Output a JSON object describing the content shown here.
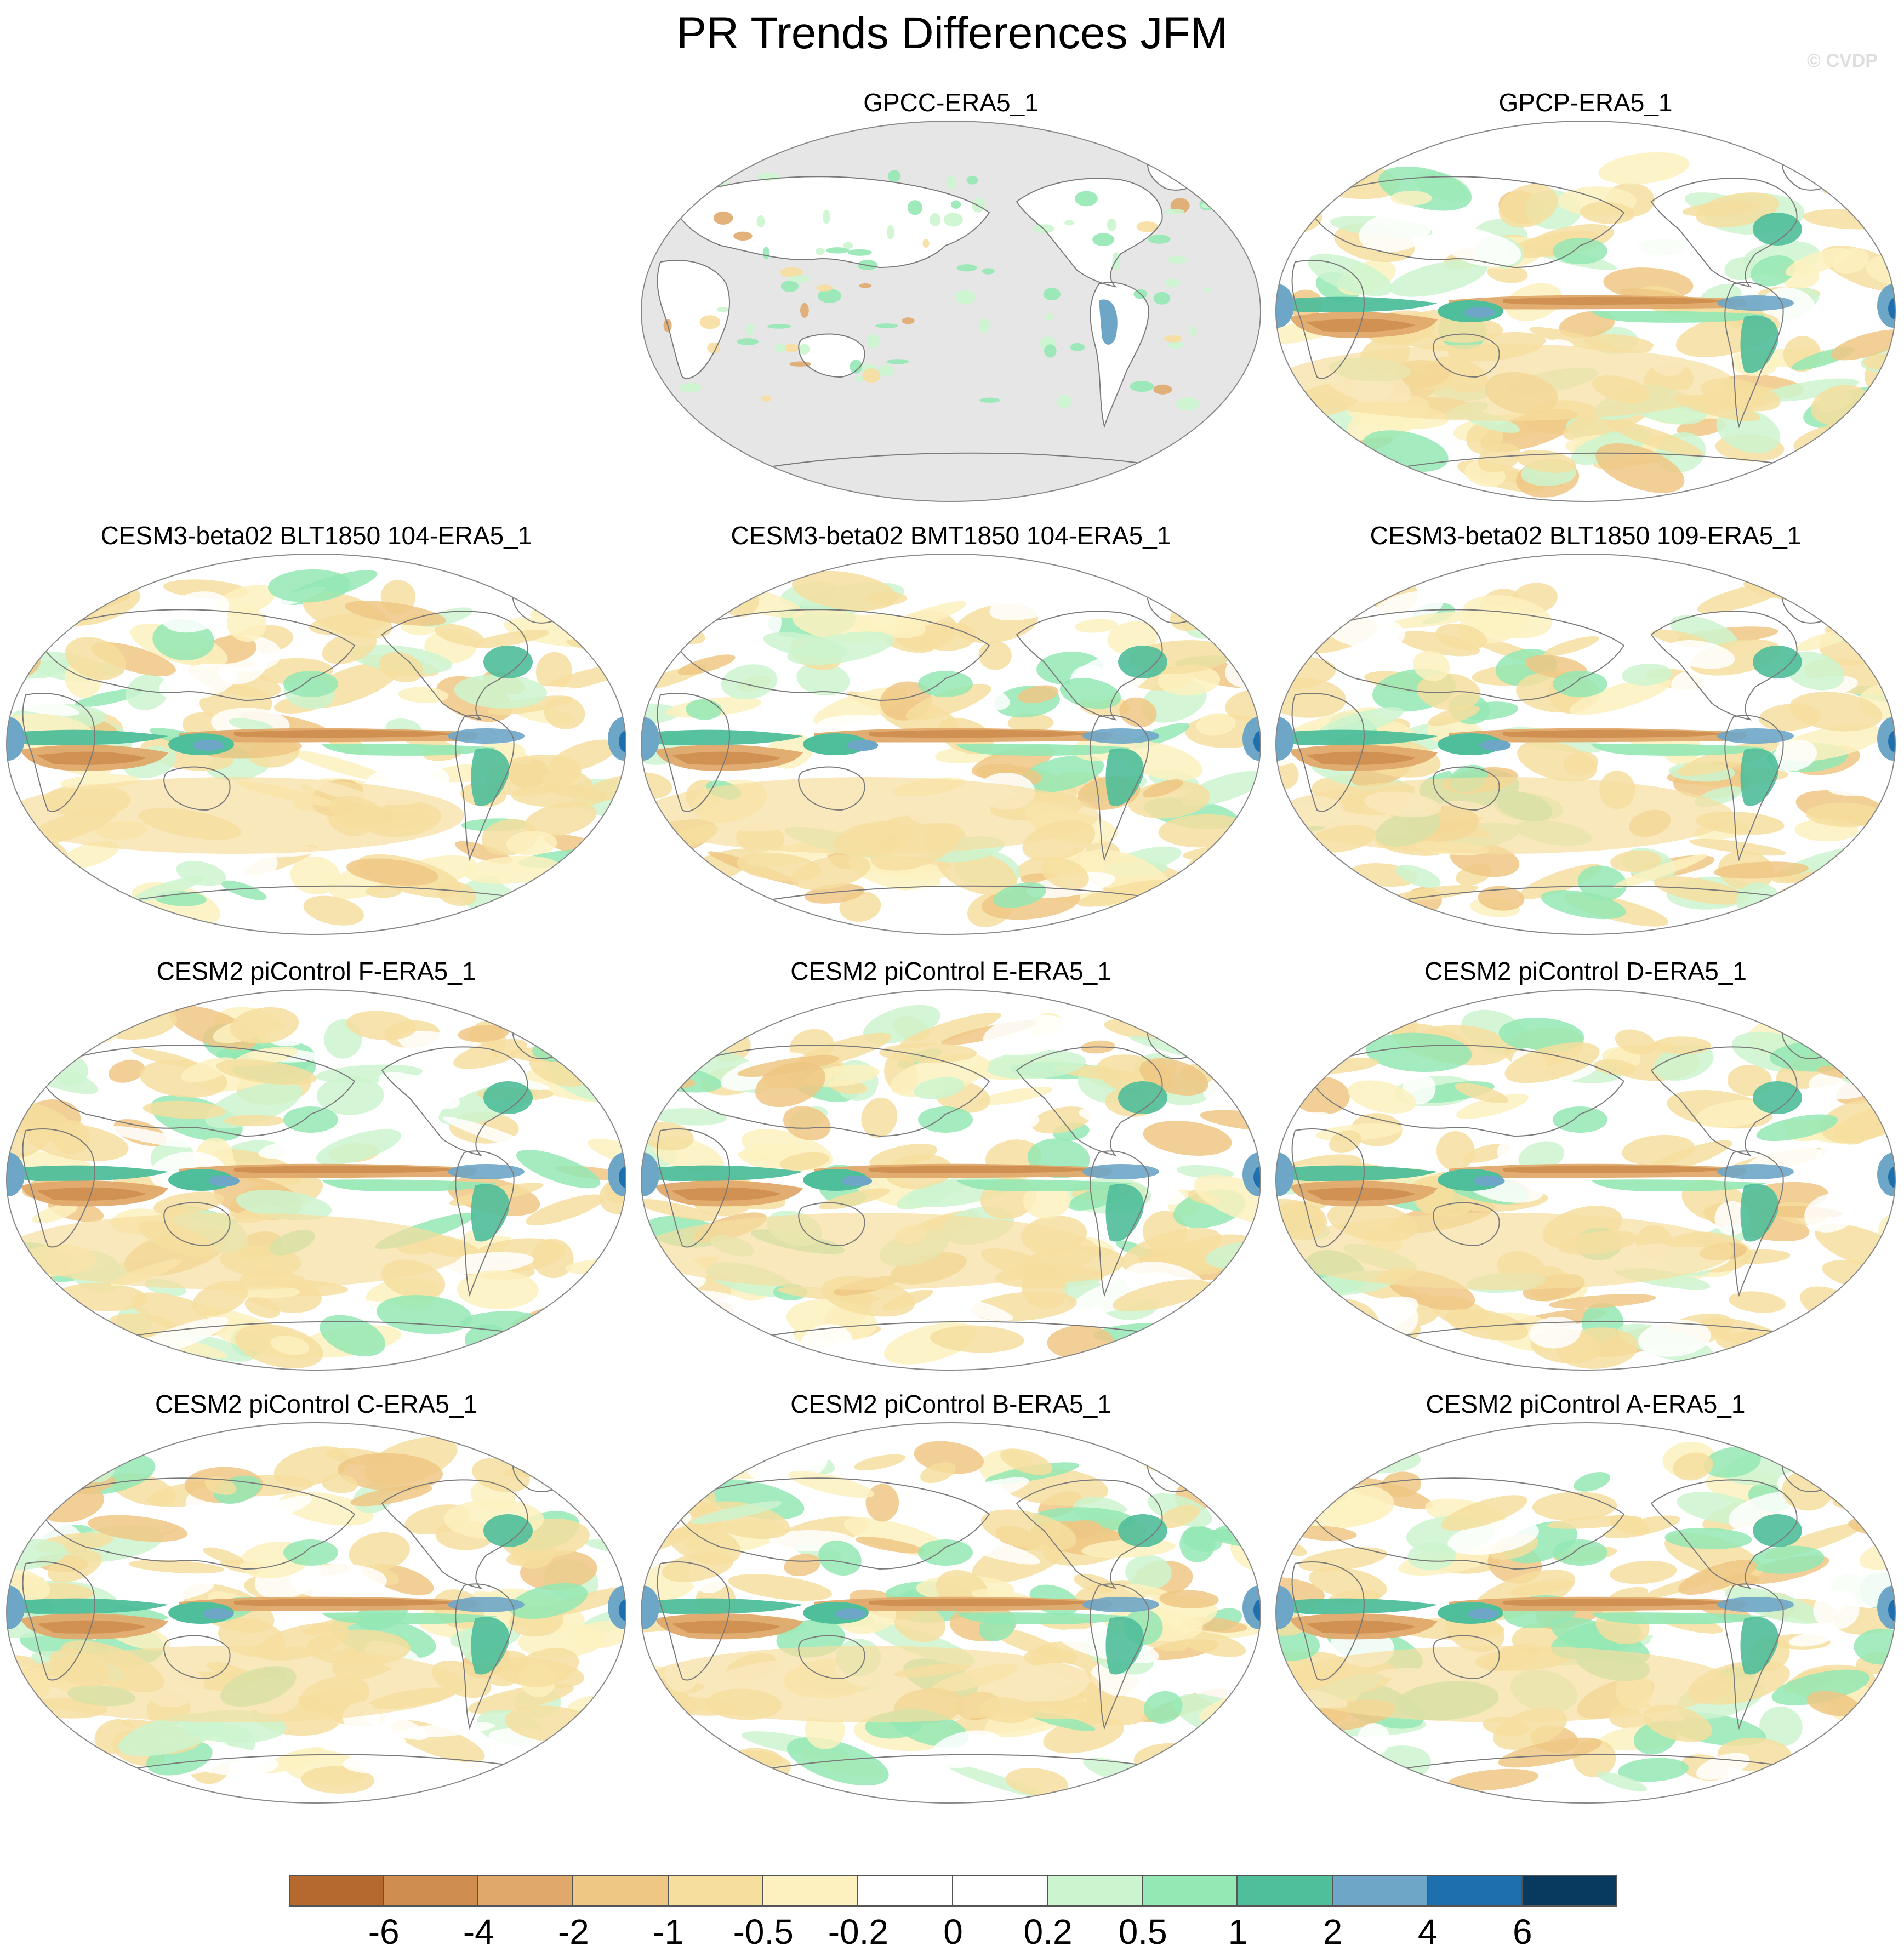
{
  "title": "PR Trends Differences JFM",
  "credit": "© CVDP",
  "panels": [
    {
      "label": "GPCC-ERA5_1",
      "style": "land-only"
    },
    {
      "label": "GPCP-ERA5_1",
      "style": "global"
    },
    {
      "label": "CESM3-beta02 BLT1850 104-ERA5_1",
      "style": "global"
    },
    {
      "label": "CESM3-beta02 BMT1850 104-ERA5_1",
      "style": "global"
    },
    {
      "label": "CESM3-beta02 BLT1850 109-ERA5_1",
      "style": "global"
    },
    {
      "label": "CESM2 piControl F-ERA5_1",
      "style": "global"
    },
    {
      "label": "CESM2 piControl E-ERA5_1",
      "style": "global"
    },
    {
      "label": "CESM2 piControl D-ERA5_1",
      "style": "global"
    },
    {
      "label": "CESM2 piControl C-ERA5_1",
      "style": "global"
    },
    {
      "label": "CESM2 piControl B-ERA5_1",
      "style": "global"
    },
    {
      "label": "CESM2 piControl A-ERA5_1",
      "style": "global"
    }
  ],
  "colorbar": {
    "colors": [
      "#b5692e",
      "#cf8e4f",
      "#e0a96b",
      "#efc784",
      "#f6de9f",
      "#fdf1bf",
      "#ffffff",
      "#ffffff",
      "#ccf5cf",
      "#94e8b4",
      "#4fbe9a",
      "#6ea6c8",
      "#1e6fae",
      "#08395e"
    ],
    "labels": [
      "-6",
      "-4",
      "-2",
      "-1",
      "-0.5",
      "-0.2",
      "0",
      "0.2",
      "0.5",
      "1",
      "2",
      "4",
      "6"
    ]
  },
  "colors": {
    "missing": "#e6e6e6",
    "coast": "#7a7a7a",
    "border": "#888888"
  }
}
